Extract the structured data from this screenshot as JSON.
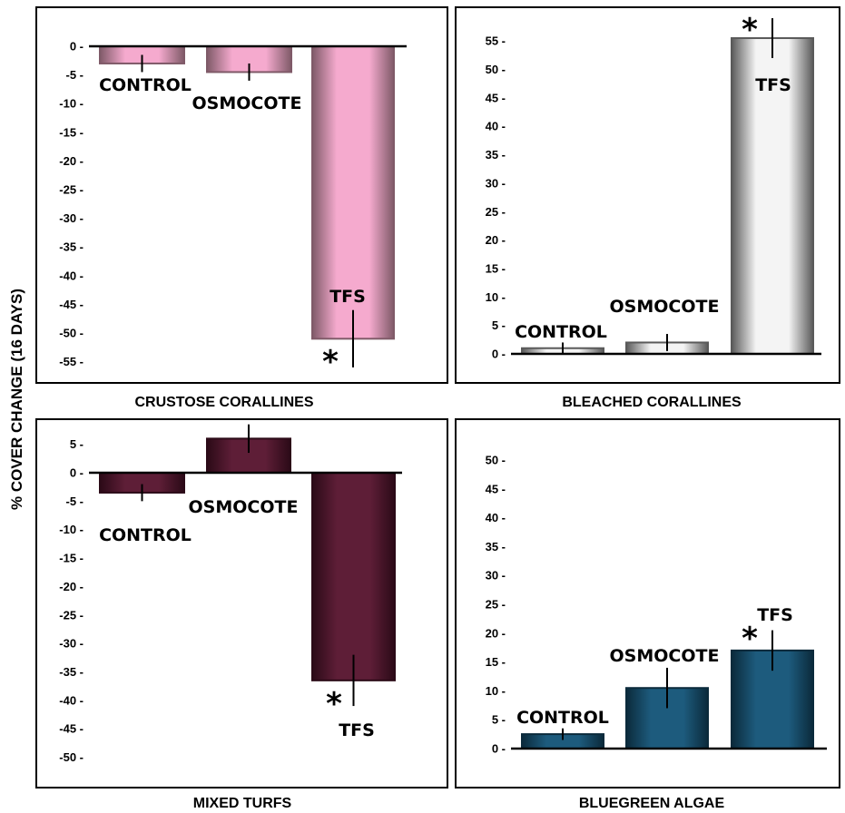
{
  "y_axis_label": "% COVER CHANGE (16 DAYS)",
  "chart_data": [
    {
      "type": "bar",
      "title": "CRUSTOSE CORALLINES",
      "categories": [
        "CONTROL",
        "OSMOCOTE",
        "TFS"
      ],
      "values": [
        -3,
        -4.5,
        -51
      ],
      "error": [
        1.5,
        1.5,
        5
      ],
      "significance": [
        "",
        "",
        "*"
      ],
      "ylim": [
        -57,
        2
      ],
      "yticks": [
        0,
        -5,
        -10,
        -15,
        -20,
        -25,
        -30,
        -35,
        -40,
        -45,
        -50,
        -55
      ],
      "fill": "#f5aace",
      "stroke": "#7f5a68"
    },
    {
      "type": "bar",
      "title": "BLEACHED CORALLINES",
      "categories": [
        "CONTROL",
        "OSMOCOTE",
        "TFS"
      ],
      "values": [
        1,
        2,
        55.5
      ],
      "error": [
        1,
        1.5,
        3.5
      ],
      "significance": [
        "",
        "",
        "*"
      ],
      "ylim": [
        -1,
        58
      ],
      "yticks": [
        0,
        5,
        10,
        15,
        20,
        25,
        30,
        35,
        40,
        45,
        50,
        55
      ],
      "fill": "#f4f4f4",
      "stroke": "#5a5a5a"
    },
    {
      "type": "bar",
      "title": "MIXED TURFS",
      "categories": [
        "CONTROL",
        "OSMOCOTE",
        "TFS"
      ],
      "values": [
        -3.5,
        6,
        -36.5
      ],
      "error": [
        1.5,
        2.5,
        4.5
      ],
      "significance": [
        "",
        "",
        "*"
      ],
      "ylim": [
        -52,
        8
      ],
      "yticks": [
        5,
        0,
        -5,
        -10,
        -15,
        -20,
        -25,
        -30,
        -35,
        -40,
        -45,
        -50
      ],
      "fill": "#5e1e37",
      "stroke": "#2b0a17"
    },
    {
      "type": "bar",
      "title": "BLUEGREEN ALGAE",
      "categories": [
        "CONTROL",
        "OSMOCOTE",
        "TFS"
      ],
      "values": [
        2.5,
        10.5,
        17
      ],
      "error": [
        1,
        3.5,
        3.5
      ],
      "significance": [
        "",
        "",
        "*"
      ],
      "ylim": [
        -1,
        52
      ],
      "yticks": [
        0,
        5,
        10,
        15,
        20,
        25,
        30,
        35,
        40,
        45,
        50
      ],
      "fill": "#1d5b7d",
      "stroke": "#0b2a3b"
    }
  ]
}
